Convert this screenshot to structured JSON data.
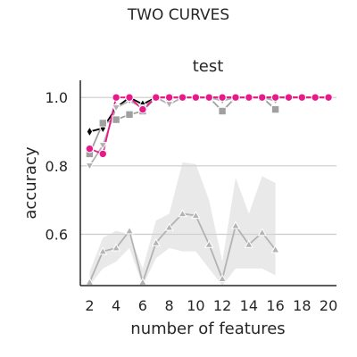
{
  "chart_data": {
    "type": "line",
    "suptitle": "TWO CURVES",
    "title": "test",
    "xlabel": "number of features",
    "ylabel": "accuracy",
    "xlim": [
      1.3,
      20.6
    ],
    "ylim": [
      0.45,
      1.05
    ],
    "xticks": [
      2,
      4,
      6,
      8,
      10,
      12,
      14,
      16,
      18,
      20
    ],
    "yticks": [
      0.6,
      0.8,
      1.0
    ],
    "ytick_labels": [
      "0.6",
      "0.8",
      "1.0"
    ],
    "grid": "horizontal",
    "legend": "none",
    "series": [
      {
        "color": "#000000",
        "marker": "diamond",
        "x": [
          2,
          3,
          4,
          5,
          6,
          7,
          8,
          9,
          10,
          11,
          12,
          13,
          14,
          15,
          16,
          17,
          18,
          19,
          20
        ],
        "y": [
          0.9,
          0.91,
          0.97,
          1.0,
          0.98,
          1.0,
          1.0,
          1.0,
          1.0,
          1.0,
          1.0,
          1.0,
          1.0,
          1.0,
          1.0,
          1.0,
          1.0,
          1.0,
          1.0
        ]
      },
      {
        "color": "#a0a0a0",
        "marker": "square",
        "x": [
          2,
          3,
          4,
          5,
          6,
          7,
          8,
          9,
          10,
          11,
          12,
          13,
          14,
          15,
          16
        ],
        "y": [
          0.835,
          0.925,
          0.935,
          0.95,
          0.96,
          1.0,
          1.0,
          1.0,
          1.0,
          1.0,
          0.96,
          1.0,
          1.0,
          1.0,
          0.965
        ]
      },
      {
        "color": "#b0b0b0",
        "marker": "triangle-down",
        "x": [
          2,
          3,
          4,
          5,
          6,
          7,
          8,
          9,
          10,
          11,
          12,
          13,
          14,
          15,
          16
        ],
        "y": [
          0.8,
          0.86,
          0.97,
          0.99,
          0.97,
          1.0,
          0.98,
          1.0,
          1.0,
          1.0,
          0.99,
          1.0,
          1.0,
          1.0,
          0.99
        ]
      },
      {
        "color": "#b3b3b3",
        "marker": "triangle-up",
        "x": [
          2,
          3,
          4,
          5,
          6,
          7,
          8,
          9,
          10,
          11,
          12,
          13,
          14,
          15,
          16
        ],
        "y": [
          0.46,
          0.55,
          0.56,
          0.61,
          0.46,
          0.575,
          0.62,
          0.66,
          0.655,
          0.57,
          0.47,
          0.625,
          0.57,
          0.605,
          0.555
        ],
        "band_low": [
          0.45,
          0.5,
          0.52,
          0.56,
          0.45,
          0.53,
          0.56,
          0.55,
          0.55,
          0.5,
          0.45,
          0.5,
          0.5,
          0.5,
          0.48
        ],
        "band_high": [
          0.49,
          0.59,
          0.61,
          0.6,
          0.5,
          0.64,
          0.66,
          0.81,
          0.805,
          0.7,
          0.52,
          0.765,
          0.66,
          0.77,
          0.75
        ]
      },
      {
        "color": "#e8198b",
        "marker": "circle",
        "x": [
          2,
          3,
          4,
          5,
          6,
          7,
          8,
          9,
          10,
          11,
          12,
          13,
          14,
          15,
          16,
          17,
          18,
          19,
          20
        ],
        "y": [
          0.85,
          0.835,
          1.0,
          1.0,
          0.965,
          1.0,
          1.0,
          1.0,
          1.0,
          1.0,
          1.0,
          1.0,
          1.0,
          1.0,
          1.0,
          1.0,
          1.0,
          1.0,
          1.0
        ]
      }
    ]
  }
}
